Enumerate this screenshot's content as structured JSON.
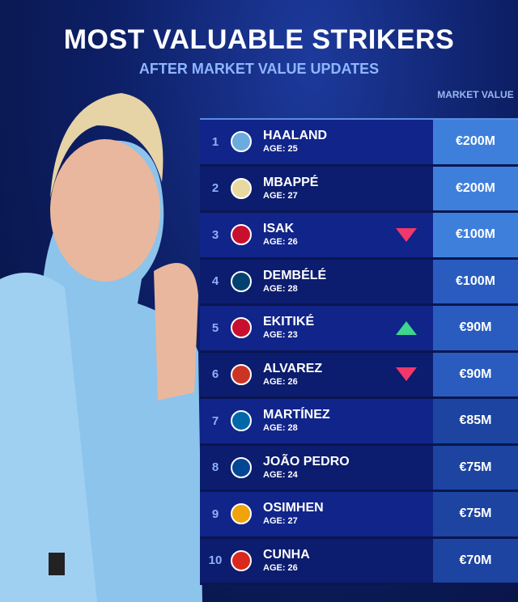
{
  "title": "MOST VALUABLE STRIKERS",
  "subtitle": "AFTER MARKET VALUE UPDATES",
  "column_header": "MARKET VALUE",
  "colors": {
    "down": "#f0386a",
    "up": "#3ed58f",
    "value_bg": "#3f7fdc"
  },
  "players": [
    {
      "rank": "1",
      "name": "HAALAND",
      "age": "AGE: 25",
      "value": "€200M",
      "trend": "none",
      "club_icon": "man-city-crest",
      "crest_color": "#6cabdd"
    },
    {
      "rank": "2",
      "name": "MBAPPÉ",
      "age": "AGE: 27",
      "value": "€200M",
      "trend": "none",
      "club_icon": "real-madrid-crest",
      "crest_color": "#e8d9a0"
    },
    {
      "rank": "3",
      "name": "ISAK",
      "age": "AGE: 26",
      "value": "€100M",
      "trend": "down",
      "club_icon": "liverpool-crest",
      "crest_color": "#c8102e"
    },
    {
      "rank": "4",
      "name": "DEMBÉLÉ",
      "age": "AGE: 28",
      "value": "€100M",
      "trend": "none",
      "club_icon": "psg-crest",
      "crest_color": "#004170"
    },
    {
      "rank": "5",
      "name": "EKITIKÉ",
      "age": "AGE: 23",
      "value": "€90M",
      "trend": "up",
      "club_icon": "liverpool-crest",
      "crest_color": "#c8102e"
    },
    {
      "rank": "6",
      "name": "ALVAREZ",
      "age": "AGE: 26",
      "value": "€90M",
      "trend": "down",
      "club_icon": "atletico-crest",
      "crest_color": "#cb3524"
    },
    {
      "rank": "7",
      "name": "MARTÍNEZ",
      "age": "AGE: 28",
      "value": "€85M",
      "trend": "none",
      "club_icon": "inter-crest",
      "crest_color": "#0068a8"
    },
    {
      "rank": "8",
      "name": "JOÃO PEDRO",
      "age": "AGE: 24",
      "value": "€75M",
      "trend": "none",
      "club_icon": "chelsea-crest",
      "crest_color": "#034694"
    },
    {
      "rank": "9",
      "name": "OSIMHEN",
      "age": "AGE: 27",
      "value": "€75M",
      "trend": "none",
      "club_icon": "galatasaray-crest",
      "crest_color": "#f0a30a"
    },
    {
      "rank": "10",
      "name": "CUNHA",
      "age": "AGE: 26",
      "value": "€70M",
      "trend": "none",
      "club_icon": "man-utd-crest",
      "crest_color": "#da291c"
    }
  ]
}
